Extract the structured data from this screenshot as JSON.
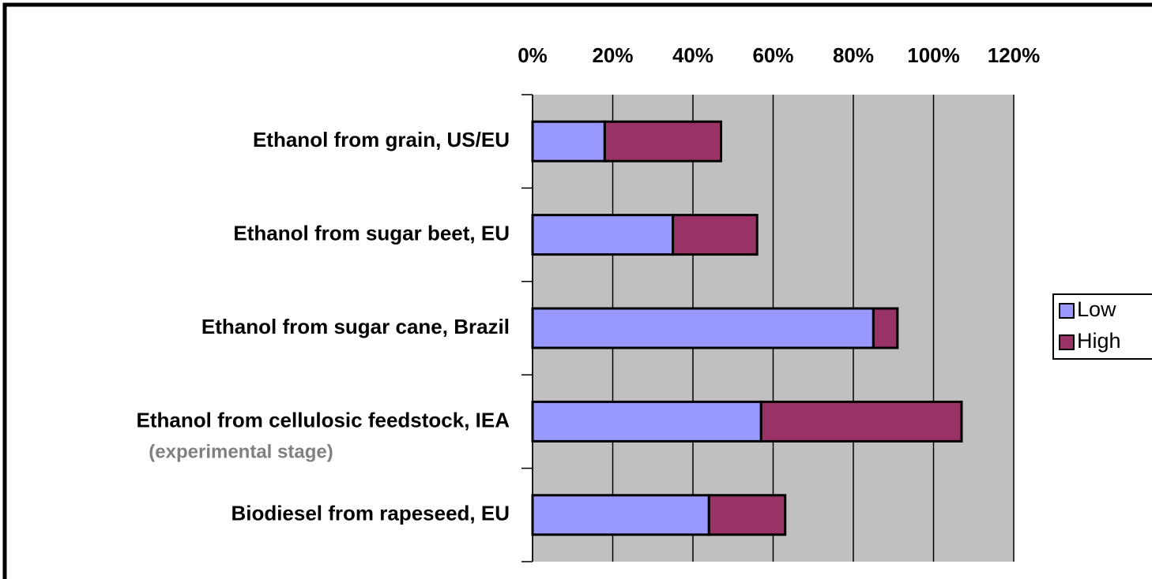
{
  "chart_data": {
    "type": "stacked_barh",
    "categories": [
      "Ethanol from grain, US/EU",
      "Ethanol from sugar beet, EU",
      "Ethanol from sugar cane, Brazil",
      "Ethanol from cellulosic feedstock, IEA",
      "Biodiesel from rapeseed, EU"
    ],
    "annotations": [
      "(experimental stage)"
    ],
    "series": [
      {
        "name": "Low",
        "color": "#9999ff",
        "values": [
          18,
          35,
          85,
          57,
          44
        ]
      },
      {
        "name": "High",
        "color": "#993366",
        "values": [
          29,
          21,
          6,
          50,
          19
        ]
      }
    ],
    "xlim": [
      0,
      120
    ],
    "xticks": [
      {
        "value": 0,
        "label": "0%"
      },
      {
        "value": 20,
        "label": "20%"
      },
      {
        "value": 40,
        "label": "40%"
      },
      {
        "value": 60,
        "label": "60%"
      },
      {
        "value": 80,
        "label": "80%"
      },
      {
        "value": 100,
        "label": "100%"
      },
      {
        "value": 120,
        "label": "120%"
      }
    ],
    "grid": true,
    "legend": "right"
  }
}
